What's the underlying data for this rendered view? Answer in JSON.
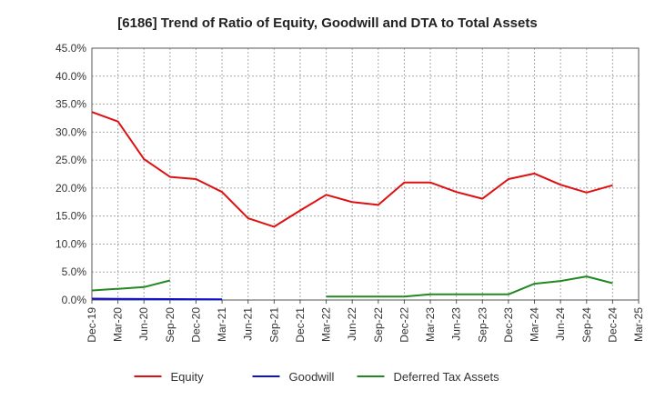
{
  "chart_data": {
    "type": "line",
    "title": "[6186]  Trend of Ratio of Equity, Goodwill and DTA to Total Assets",
    "xlabel": "",
    "ylabel": "",
    "ylim": [
      0,
      45
    ],
    "yticks": [
      0,
      5,
      10,
      15,
      20,
      25,
      30,
      35,
      40,
      45
    ],
    "ytick_labels": [
      "0.0%",
      "5.0%",
      "10.0%",
      "15.0%",
      "20.0%",
      "25.0%",
      "30.0%",
      "35.0%",
      "40.0%",
      "45.0%"
    ],
    "categories": [
      "Dec-19",
      "Mar-20",
      "Jun-20",
      "Sep-20",
      "Dec-20",
      "Mar-21",
      "Jun-21",
      "Sep-21",
      "Dec-21",
      "Mar-22",
      "Jun-22",
      "Sep-22",
      "Dec-22",
      "Mar-23",
      "Jun-23",
      "Sep-23",
      "Dec-23",
      "Mar-24",
      "Jun-24",
      "Sep-24",
      "Dec-24",
      "Mar-25"
    ],
    "grid": true,
    "legend_position": "bottom",
    "series": [
      {
        "name": "Equity",
        "color": "#dd1111",
        "values": [
          33.6,
          31.9,
          25.2,
          22.0,
          21.6,
          19.3,
          14.6,
          13.1,
          16.0,
          18.8,
          17.5,
          17.0,
          21.0,
          21.0,
          19.3,
          18.1,
          21.6,
          22.6,
          20.6,
          19.2,
          20.5,
          null
        ]
      },
      {
        "name": "Goodwill",
        "color": "#1111cc",
        "values": [
          0.25,
          0.2,
          0.18,
          0.16,
          0.14,
          0.12,
          null,
          null,
          null,
          null,
          null,
          null,
          null,
          null,
          null,
          null,
          null,
          null,
          null,
          null,
          null,
          null
        ]
      },
      {
        "name": "Deferred Tax Assets",
        "color": "#228822",
        "values": [
          1.7,
          2.0,
          2.3,
          3.5,
          null,
          null,
          null,
          null,
          null,
          0.6,
          0.6,
          0.6,
          0.6,
          1.0,
          1.0,
          1.0,
          1.0,
          2.9,
          3.4,
          4.2,
          3.0,
          null
        ]
      }
    ]
  }
}
